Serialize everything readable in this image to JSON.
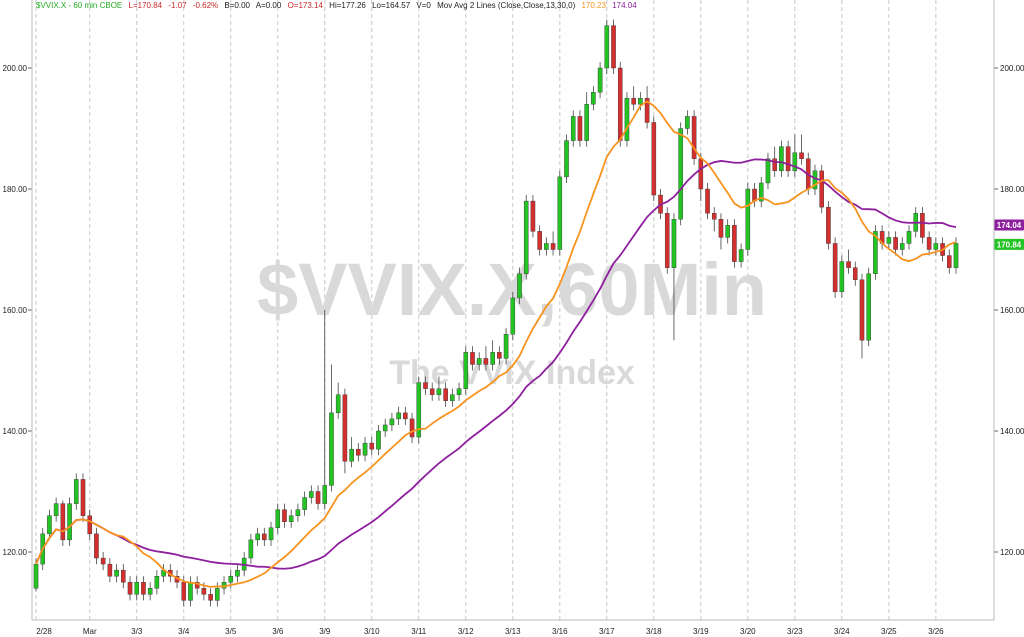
{
  "header": {
    "symbol_line": "$VVIX.X - 60 min  CBOE",
    "last": "L=170.84",
    "change": "-1.07",
    "change_pct": "-0.62%",
    "bid": "B=0.00",
    "ask": "A=0.00",
    "open": "O=173.14",
    "high": "Hi=177.26",
    "low": "Lo=164.57",
    "volume": "V=0",
    "study": "Mov Avg 2 Lines (Close,Close,13,30,0)",
    "ma_fast_value": "170.23",
    "ma_slow_value": "174.04"
  },
  "watermark": {
    "symbol": "$VVIX.X,60Min",
    "name": "The VVIX Index"
  },
  "price_tags": {
    "slow": "174.04",
    "last": "170.84"
  },
  "colors": {
    "up": "#22c322",
    "down": "#d32f2f",
    "ma_fast": "#f7931e",
    "ma_slow": "#8e1f9e",
    "grid": "#c8c8c8",
    "header_green": "#22aa22",
    "header_red": "#c62828"
  },
  "chart_data": {
    "type": "candlestick",
    "interval": "60 min",
    "symbol": "$VVIX.X",
    "y_ticks": [
      "120.00",
      "140.00",
      "160.00",
      "180.00",
      "200.00"
    ],
    "ylim": [
      110,
      211
    ],
    "grid": true,
    "x_labels": [
      {
        "label": "2/28",
        "i": 0
      },
      {
        "label": "Mar",
        "i": 8
      },
      {
        "label": "3/3",
        "i": 15
      },
      {
        "label": "3/4",
        "i": 22
      },
      {
        "label": "3/5",
        "i": 29
      },
      {
        "label": "3/6",
        "i": 36
      },
      {
        "label": "3/9",
        "i": 43
      },
      {
        "label": "3/10",
        "i": 50
      },
      {
        "label": "3/11",
        "i": 57
      },
      {
        "label": "3/12",
        "i": 64
      },
      {
        "label": "3/13",
        "i": 71
      },
      {
        "label": "3/16",
        "i": 78
      },
      {
        "label": "3/17",
        "i": 85
      },
      {
        "label": "3/18",
        "i": 92
      },
      {
        "label": "3/19",
        "i": 99
      },
      {
        "label": "3/20",
        "i": 106
      },
      {
        "label": "3/23",
        "i": 113
      },
      {
        "label": "3/24",
        "i": 120
      },
      {
        "label": "3/25",
        "i": 127
      },
      {
        "label": "3/26",
        "i": 134
      }
    ],
    "candles": [
      [
        114,
        118,
        113.5,
        119
      ],
      [
        118,
        123,
        117,
        124
      ],
      [
        123,
        126,
        122,
        127
      ],
      [
        126,
        128,
        125,
        129
      ],
      [
        128,
        122,
        121,
        128.5
      ],
      [
        122,
        128,
        121,
        129
      ],
      [
        128,
        132,
        127,
        133
      ],
      [
        132,
        126,
        125,
        133
      ],
      [
        126,
        123,
        122,
        127
      ],
      [
        123,
        119,
        118,
        124
      ],
      [
        119,
        118,
        117,
        120
      ],
      [
        118,
        116,
        115,
        119
      ],
      [
        116,
        117,
        115,
        118
      ],
      [
        117,
        115,
        114,
        118
      ],
      [
        115,
        113,
        112,
        116
      ],
      [
        113,
        115,
        112,
        116
      ],
      [
        115,
        113,
        112,
        116
      ],
      [
        113,
        114,
        112,
        115
      ],
      [
        114,
        116,
        113,
        117
      ],
      [
        116,
        117,
        115,
        118
      ],
      [
        117,
        116,
        115,
        118
      ],
      [
        116,
        115,
        114,
        117
      ],
      [
        115,
        112,
        111,
        116
      ],
      [
        112,
        115,
        111,
        116
      ],
      [
        115,
        114,
        113,
        116
      ],
      [
        114,
        113,
        112,
        115
      ],
      [
        113,
        112,
        111,
        114
      ],
      [
        112,
        114,
        111,
        115
      ],
      [
        114,
        115,
        113,
        116
      ],
      [
        115,
        116,
        114,
        117
      ],
      [
        116,
        117,
        115,
        118
      ],
      [
        117,
        119,
        116,
        120
      ],
      [
        119,
        122,
        118,
        123
      ],
      [
        122,
        123,
        121,
        124
      ],
      [
        123,
        122,
        121,
        124
      ],
      [
        122,
        124,
        121,
        125
      ],
      [
        124,
        127,
        123,
        128
      ],
      [
        127,
        125,
        124,
        128
      ],
      [
        125,
        126,
        124,
        127
      ],
      [
        126,
        127,
        125,
        128
      ],
      [
        127,
        129,
        126,
        130
      ],
      [
        129,
        130,
        128,
        131
      ],
      [
        130,
        128,
        127,
        131
      ],
      [
        128,
        131,
        127,
        160
      ],
      [
        131,
        143,
        130,
        151
      ],
      [
        143,
        146,
        142,
        148
      ],
      [
        146,
        135,
        133,
        147
      ],
      [
        135,
        137,
        134,
        139
      ],
      [
        137,
        136,
        135,
        138
      ],
      [
        136,
        138,
        135,
        139
      ],
      [
        138,
        137,
        136,
        139
      ],
      [
        137,
        140,
        136,
        141
      ],
      [
        140,
        141,
        139,
        142
      ],
      [
        141,
        142,
        140,
        143
      ],
      [
        142,
        143,
        141,
        144
      ],
      [
        143,
        142,
        141,
        144
      ],
      [
        142,
        139,
        138,
        143
      ],
      [
        139,
        148,
        138,
        149
      ],
      [
        148,
        147,
        146,
        149
      ],
      [
        147,
        146,
        145,
        148
      ],
      [
        146,
        147,
        145,
        149
      ],
      [
        147,
        145,
        144,
        148
      ],
      [
        145,
        146,
        144,
        147
      ],
      [
        146,
        147,
        145,
        148
      ],
      [
        147,
        153,
        146,
        154
      ],
      [
        153,
        151,
        150,
        154
      ],
      [
        151,
        152,
        150,
        153
      ],
      [
        152,
        151,
        150,
        154
      ],
      [
        151,
        153,
        150,
        155
      ],
      [
        153,
        152,
        151,
        154
      ],
      [
        152,
        156,
        151,
        157
      ],
      [
        156,
        162,
        155,
        163
      ],
      [
        162,
        166,
        161,
        167
      ],
      [
        166,
        178,
        165,
        179
      ],
      [
        178,
        173,
        172,
        179
      ],
      [
        173,
        170,
        169,
        174
      ],
      [
        170,
        171,
        169,
        172
      ],
      [
        171,
        170,
        169,
        173
      ],
      [
        170,
        182,
        169,
        183
      ],
      [
        182,
        188,
        181,
        189
      ],
      [
        188,
        192,
        187,
        193
      ],
      [
        192,
        188,
        187,
        193
      ],
      [
        188,
        194,
        187,
        196
      ],
      [
        194,
        196,
        193,
        197
      ],
      [
        196,
        200,
        195,
        201
      ],
      [
        200,
        207,
        199,
        208
      ],
      [
        207,
        200,
        199,
        208
      ],
      [
        200,
        188,
        187,
        201
      ],
      [
        188,
        195,
        187,
        196
      ],
      [
        195,
        194,
        193,
        197
      ],
      [
        194,
        195,
        193,
        196
      ],
      [
        195,
        191,
        190,
        197
      ],
      [
        191,
        179,
        178,
        192
      ],
      [
        179,
        176,
        175,
        180
      ],
      [
        176,
        167,
        166,
        177
      ],
      [
        167,
        175,
        155,
        176
      ],
      [
        175,
        190,
        174,
        191
      ],
      [
        190,
        192,
        189,
        193
      ],
      [
        192,
        185,
        184,
        193
      ],
      [
        185,
        180,
        178,
        186
      ],
      [
        180,
        176,
        175,
        181
      ],
      [
        176,
        175,
        173,
        177
      ],
      [
        175,
        172,
        170,
        176
      ],
      [
        172,
        174,
        171,
        175
      ],
      [
        174,
        168,
        167,
        175
      ],
      [
        168,
        170,
        167,
        171
      ],
      [
        170,
        180,
        169,
        181
      ],
      [
        180,
        178,
        177,
        181
      ],
      [
        178,
        181,
        177,
        182
      ],
      [
        181,
        185,
        180,
        186
      ],
      [
        185,
        183,
        182,
        187
      ],
      [
        183,
        187,
        182,
        188
      ],
      [
        187,
        183,
        182,
        188
      ],
      [
        183,
        186,
        182,
        189
      ],
      [
        186,
        185,
        184,
        189
      ],
      [
        185,
        180,
        179,
        186
      ],
      [
        180,
        183,
        179,
        184
      ],
      [
        183,
        177,
        176,
        184
      ],
      [
        177,
        171,
        170,
        178
      ],
      [
        171,
        163,
        162,
        172
      ],
      [
        163,
        168,
        162,
        169
      ],
      [
        168,
        167,
        166,
        170
      ],
      [
        167,
        165,
        164,
        168
      ],
      [
        165,
        155,
        152,
        166
      ],
      [
        155,
        166,
        154,
        167
      ],
      [
        166,
        173,
        165,
        174
      ],
      [
        173,
        171,
        170,
        174
      ],
      [
        171,
        172,
        170,
        173
      ],
      [
        172,
        170,
        169,
        173
      ],
      [
        170,
        171,
        169,
        172
      ],
      [
        171,
        173,
        170,
        174
      ],
      [
        173,
        176,
        172,
        177
      ],
      [
        176,
        172,
        171,
        177
      ],
      [
        172,
        170,
        169,
        173
      ],
      [
        170,
        171,
        169,
        172
      ],
      [
        171,
        169,
        168,
        172
      ],
      [
        169,
        167,
        166,
        170
      ],
      [
        167,
        171,
        166,
        172
      ]
    ],
    "ma_fast_label": "170.23",
    "ma_slow_label": "174.04"
  }
}
